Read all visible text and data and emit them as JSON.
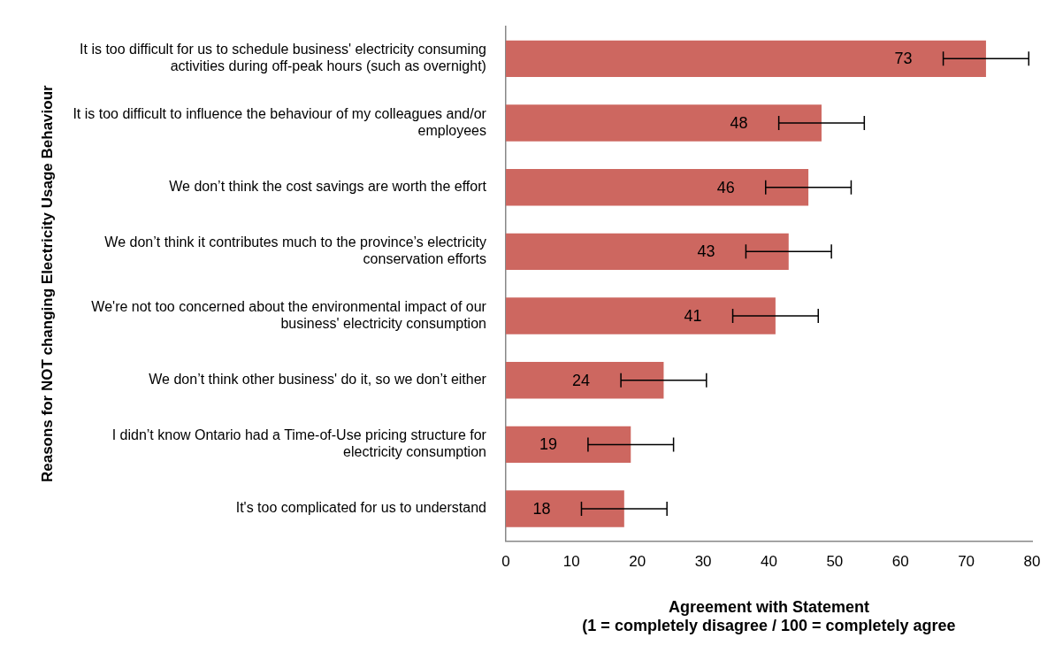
{
  "chart_data": {
    "type": "bar",
    "orientation": "horizontal",
    "categories": [
      "It is too difficult for us to schedule business' electricity consuming activities during off-peak hours (such as overnight)",
      "It is too difficult to influence the behaviour of my colleagues and/or employees",
      "We don’t think the cost savings are worth the effort",
      "We don’t think it contributes much to the province’s electricity conservation efforts",
      "We're not too concerned about the environmental impact of our business' electricity consumption",
      "We don’t think other business' do it, so we don’t either",
      "I didn’t know Ontario had a Time-of-Use pricing structure for electricity consumption",
      "It's too complicated for us to understand"
    ],
    "values": [
      73,
      48,
      46,
      43,
      41,
      24,
      19,
      18
    ],
    "errors": [
      6.5,
      6.5,
      6.5,
      6.5,
      6.5,
      6.5,
      6.5,
      6.5
    ],
    "color": "#cd6760",
    "xlim": [
      0,
      80
    ],
    "xticks": [
      0,
      10,
      20,
      30,
      40,
      50,
      60,
      70,
      80
    ],
    "xlabel": "Agreement with Statement\n(1 = completely disagree / 100 = completely agree",
    "ylabel": "Reasons for NOT changing Electricity Usage Behaviour",
    "data_labels": true,
    "grid": false,
    "legend": false
  }
}
